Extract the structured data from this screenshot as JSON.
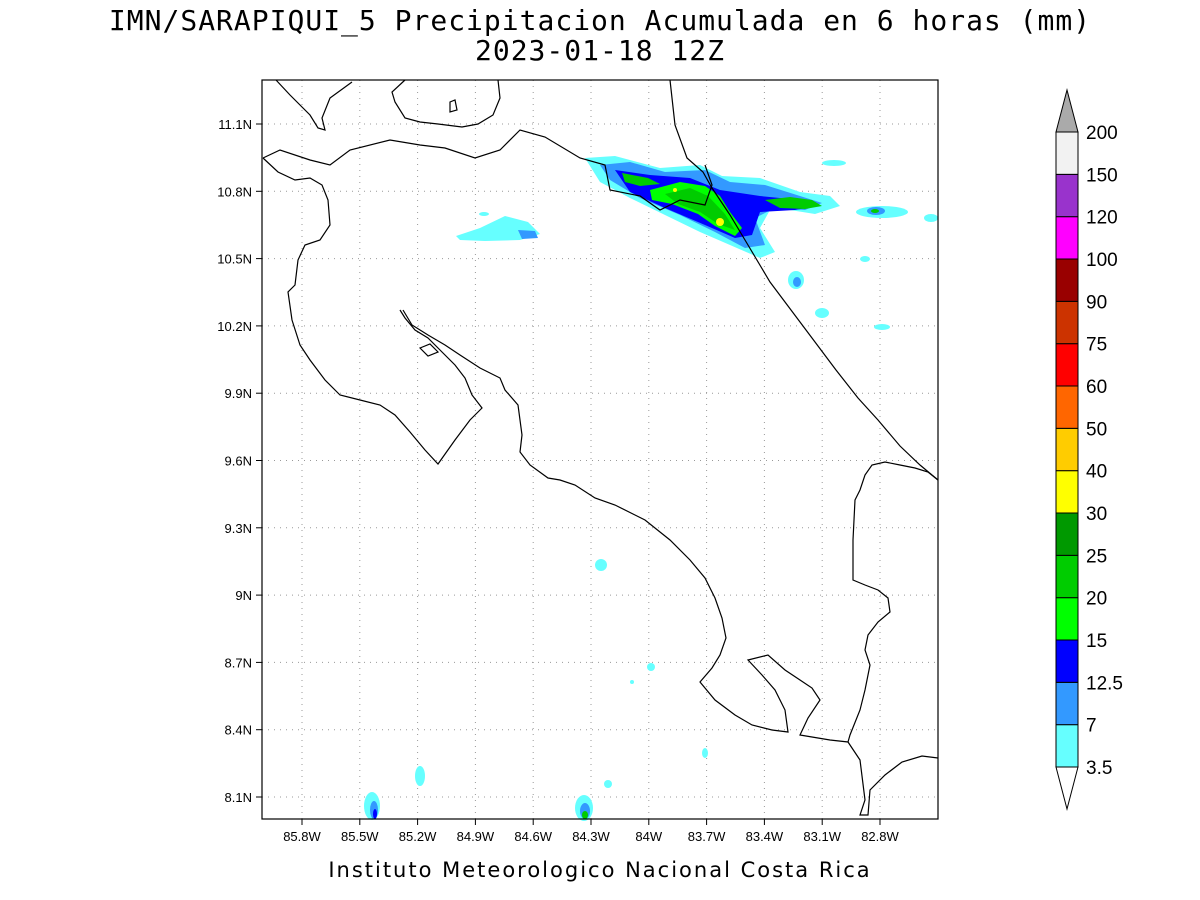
{
  "title_line1": "IMN/SARAPIQUI_5 Precipitacion Acumulada en 6 horas (mm)",
  "title_line2": "2023-01-18 12Z",
  "footer": "Instituto Meteorologico Nacional Costa Rica",
  "map": {
    "lon_range": [
      -86.1,
      -83.1
    ],
    "lat_range": [
      8.0,
      11.3
    ],
    "lon_ticks": [
      {
        "value": -85.8,
        "label": "85.8W"
      },
      {
        "value": -85.5,
        "label": "85.5W"
      },
      {
        "value": -85.2,
        "label": "85.2W"
      },
      {
        "value": -84.9,
        "label": "84.9W"
      },
      {
        "value": -84.6,
        "label": "84.6W"
      },
      {
        "value": -84.3,
        "label": "84.3W"
      },
      {
        "value": -84.0,
        "label": "84W"
      },
      {
        "value": -83.7,
        "label": "83.7W"
      },
      {
        "value": -83.4,
        "label": "83.4W"
      },
      {
        "value": -83.1,
        "label": "83.1W"
      },
      {
        "value": -82.8,
        "label": "82.8W"
      }
    ],
    "lat_ticks": [
      {
        "value": 8.1,
        "label": "8.1N"
      },
      {
        "value": 8.4,
        "label": "8.4N"
      },
      {
        "value": 8.7,
        "label": "8.7N"
      },
      {
        "value": 9.0,
        "label": "9N"
      },
      {
        "value": 9.3,
        "label": "9.3N"
      },
      {
        "value": 9.6,
        "label": "9.6N"
      },
      {
        "value": 9.9,
        "label": "9.9N"
      },
      {
        "value": 10.2,
        "label": "10.2N"
      },
      {
        "value": 10.5,
        "label": "10.5N"
      },
      {
        "value": 10.8,
        "label": "10.8N"
      },
      {
        "value": 11.1,
        "label": "11.1N"
      }
    ],
    "grid": true
  },
  "colorbar": {
    "levels": [
      "3.5",
      "7",
      "12.5",
      "15",
      "20",
      "25",
      "30",
      "40",
      "50",
      "60",
      "75",
      "90",
      "100",
      "120",
      "150",
      "200"
    ],
    "colors": [
      "#66ffff",
      "#3399ff",
      "#0000ff",
      "#00ff00",
      "#00cc00",
      "#009900",
      "#ffff00",
      "#ffcc00",
      "#ff6600",
      "#ff0000",
      "#cc3300",
      "#990000",
      "#ff00ff",
      "#9933cc",
      "#f2f2f2",
      "#aaaaaa"
    ]
  }
}
